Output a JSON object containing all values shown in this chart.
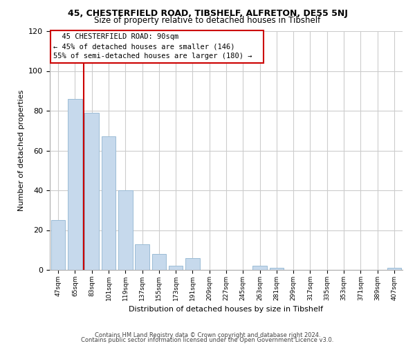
{
  "title": "45, CHESTERFIELD ROAD, TIBSHELF, ALFRETON, DE55 5NJ",
  "subtitle": "Size of property relative to detached houses in Tibshelf",
  "xlabel": "Distribution of detached houses by size in Tibshelf",
  "ylabel": "Number of detached properties",
  "bar_labels": [
    "47sqm",
    "65sqm",
    "83sqm",
    "101sqm",
    "119sqm",
    "137sqm",
    "155sqm",
    "173sqm",
    "191sqm",
    "209sqm",
    "227sqm",
    "245sqm",
    "263sqm",
    "281sqm",
    "299sqm",
    "317sqm",
    "335sqm",
    "353sqm",
    "371sqm",
    "389sqm",
    "407sqm"
  ],
  "bar_values": [
    25,
    86,
    79,
    67,
    40,
    13,
    8,
    2,
    6,
    0,
    0,
    0,
    2,
    1,
    0,
    0,
    0,
    0,
    0,
    0,
    1
  ],
  "bar_color": "#c6d9ec",
  "bar_edge_color": "#9bbcd6",
  "vline_x": 1.5,
  "vline_color": "#cc0000",
  "ylim": [
    0,
    120
  ],
  "yticks": [
    0,
    20,
    40,
    60,
    80,
    100,
    120
  ],
  "annotation_title": "45 CHESTERFIELD ROAD: 90sqm",
  "annotation_line1": "← 45% of detached houses are smaller (146)",
  "annotation_line2": "55% of semi-detached houses are larger (180) →",
  "annotation_box_color": "#ffffff",
  "annotation_box_edge": "#cc0000",
  "footer_line1": "Contains HM Land Registry data © Crown copyright and database right 2024.",
  "footer_line2": "Contains public sector information licensed under the Open Government Licence v3.0.",
  "background_color": "#ffffff",
  "grid_color": "#cccccc"
}
